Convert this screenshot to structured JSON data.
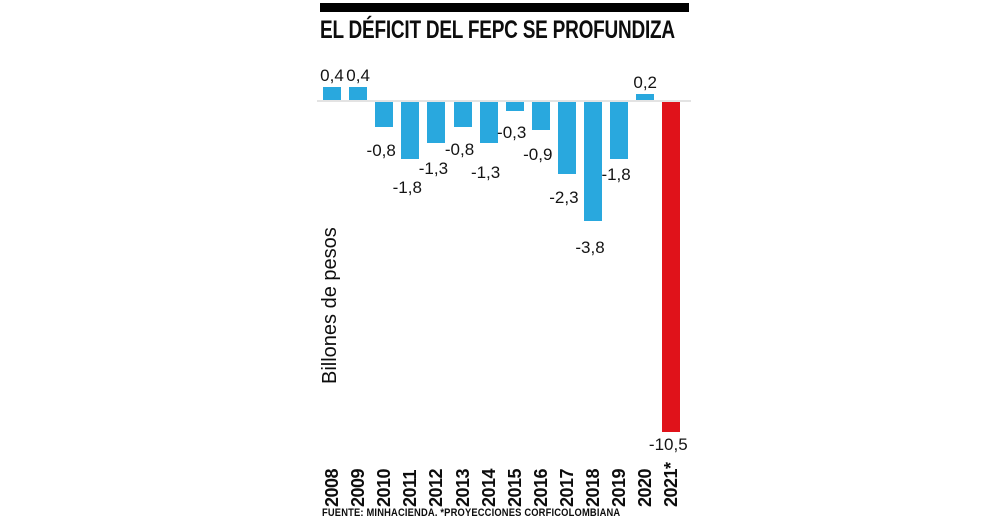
{
  "chart_data": {
    "type": "bar",
    "title": "EL DÉFICIT DEL FEPC SE PROFUNDIZA",
    "ylabel": "Billones de pesos",
    "source": "FUENTE: MINHACIENDA. *PROYECCIONES CORFICOLOMBIANA",
    "categories": [
      "2008",
      "2009",
      "2010",
      "2011",
      "2012",
      "2013",
      "2014",
      "2015",
      "2016",
      "2017",
      "2018",
      "2019",
      "2020",
      "2021*"
    ],
    "values": [
      0.4,
      0.4,
      -0.8,
      -1.8,
      -1.3,
      -0.8,
      -1.3,
      -0.3,
      -0.9,
      -2.3,
      -3.8,
      -1.8,
      0.2,
      -10.5
    ],
    "value_labels": [
      "0,4",
      "0,4",
      "-0,8",
      "-1,8",
      "-1,3",
      "-0,8",
      "-1,3",
      "-0,3",
      "-0,9",
      "-2,3",
      "-3,8",
      "-1,8",
      "0,2",
      "-10,5"
    ],
    "series_color": "#29a8de",
    "highlight_index": 13,
    "highlight_color": "#e0121a",
    "baseline_color": "#e3e3e3",
    "title_rule_color": "#000000",
    "baseline": 0,
    "ylim": [
      -10.5,
      0.4
    ],
    "grid": "off",
    "legend": "none",
    "decimal_separator": ","
  }
}
